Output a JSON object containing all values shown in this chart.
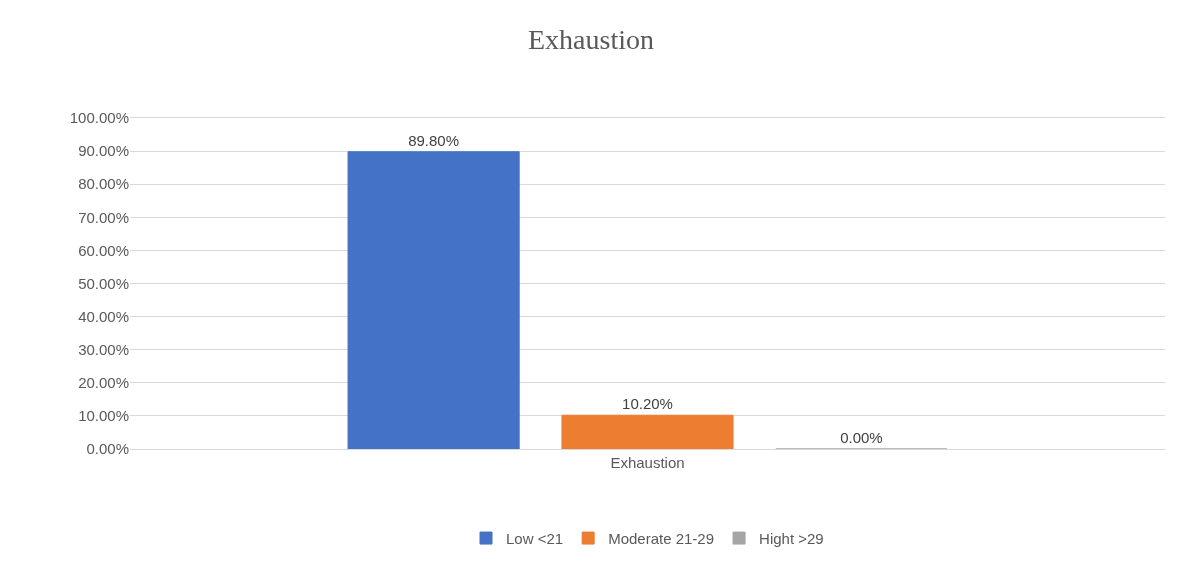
{
  "chart_data": {
    "type": "bar",
    "title": "Exhaustion",
    "categories": [
      "Exhaustion"
    ],
    "series": [
      {
        "name": "Low <21",
        "color": "#4472c4",
        "values": [
          89.8
        ],
        "value_labels": [
          "89.80%"
        ]
      },
      {
        "name": "Moderate 21-29",
        "color": "#ed7d31",
        "values": [
          10.2
        ],
        "value_labels": [
          "10.20%"
        ]
      },
      {
        "name": "Hight >29",
        "color": "#a5a5a5",
        "values": [
          0
        ],
        "value_labels": [
          "0.00%"
        ]
      }
    ],
    "ylim": [
      0,
      100
    ],
    "yticks": [
      {
        "value": 0,
        "label": "0.00%"
      },
      {
        "value": 10,
        "label": "10.00%"
      },
      {
        "value": 20,
        "label": "20.00%"
      },
      {
        "value": 30,
        "label": "30.00%"
      },
      {
        "value": 40,
        "label": "40.00%"
      },
      {
        "value": 50,
        "label": "50.00%"
      },
      {
        "value": 60,
        "label": "60.00%"
      },
      {
        "value": 70,
        "label": "70.00%"
      },
      {
        "value": 80,
        "label": "80.00%"
      },
      {
        "value": 90,
        "label": "90.00%"
      },
      {
        "value": 100,
        "label": "100.00%"
      }
    ],
    "grid": "y",
    "legend": "bottom"
  }
}
